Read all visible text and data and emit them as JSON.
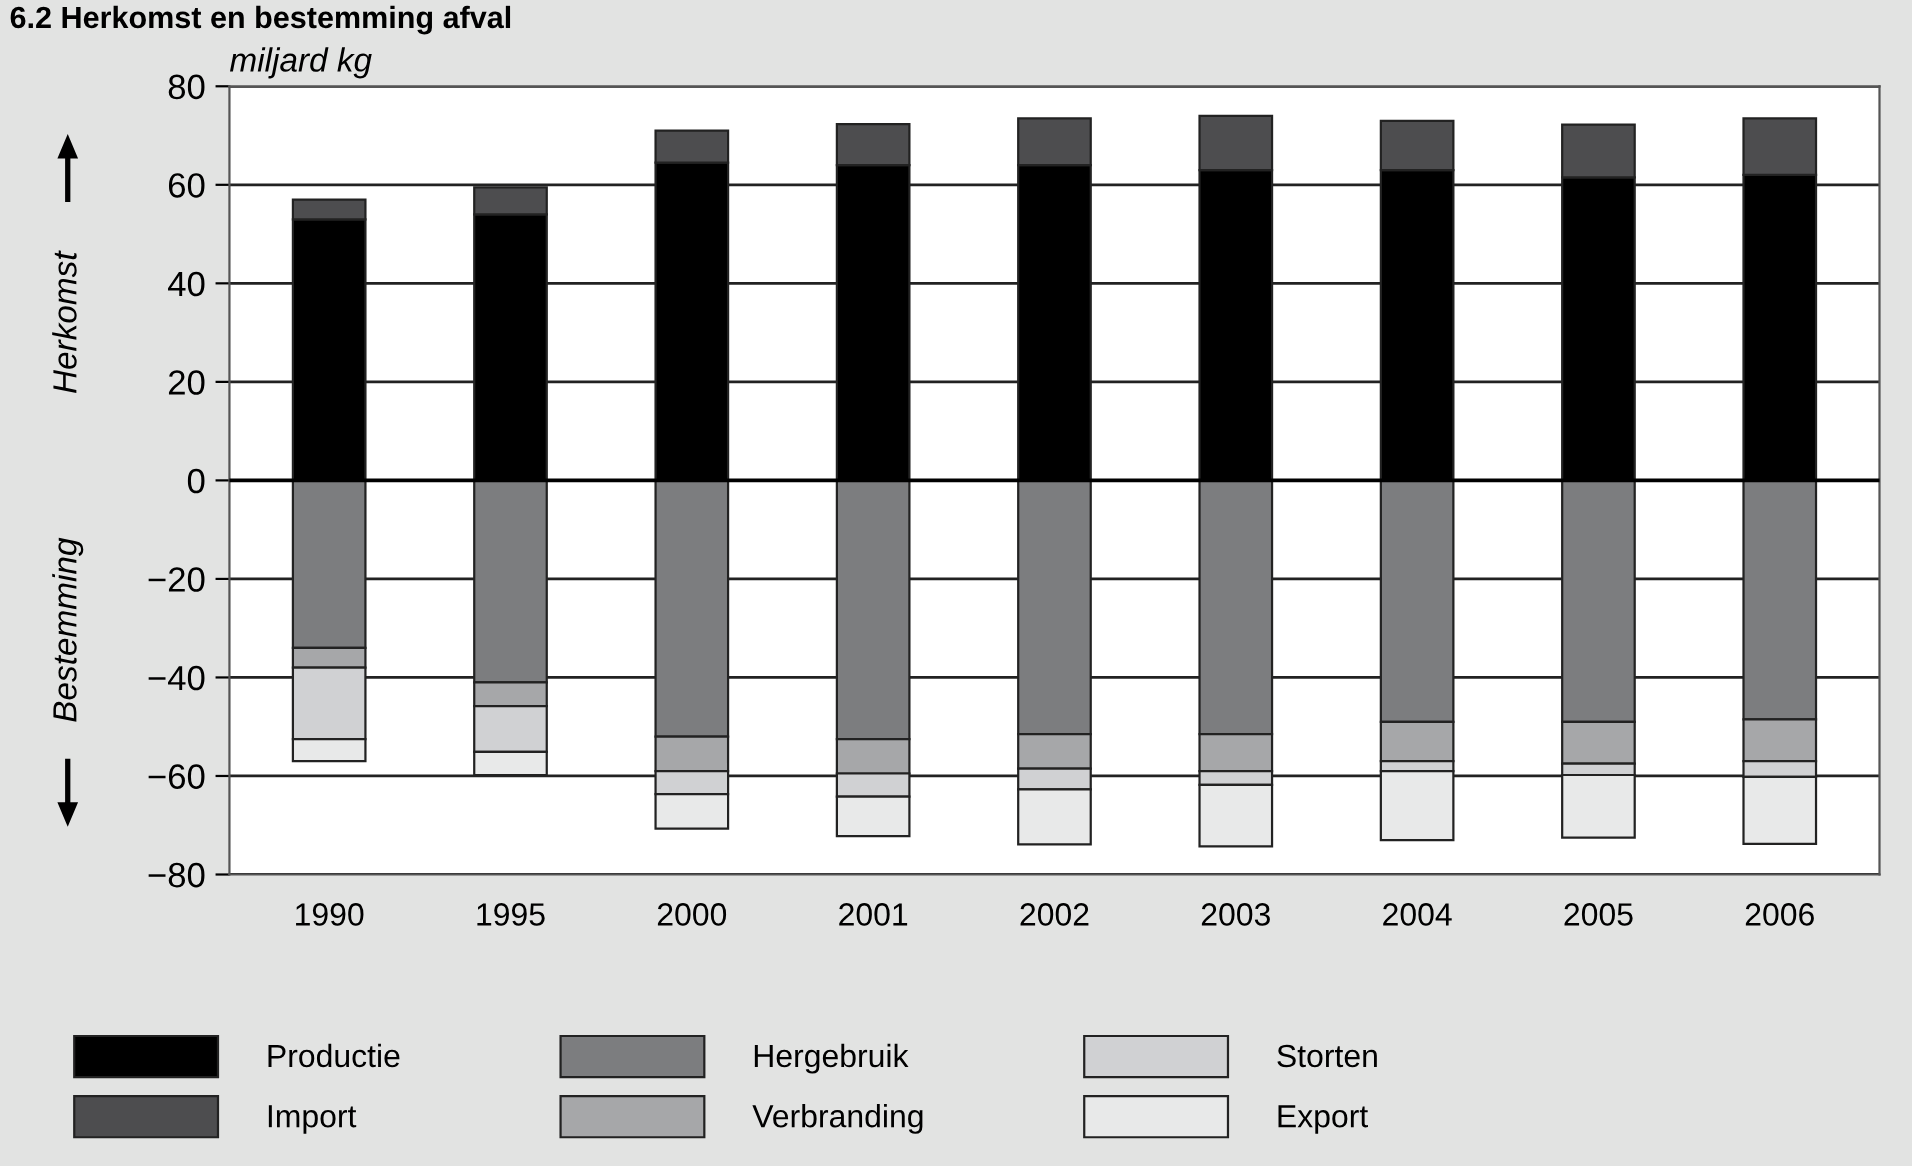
{
  "chart_data": {
    "type": "bar",
    "stacked": true,
    "title": "6.2 Herkomst en bestemming afval",
    "ylabel": "miljard kg",
    "annotations": [
      "Herkomst",
      "Bestemming"
    ],
    "categories": [
      "1990",
      "1995",
      "2000",
      "2001",
      "2002",
      "2003",
      "2004",
      "2005",
      "2006"
    ],
    "series": [
      {
        "name": "Productie",
        "color": "#000000",
        "values": [
          53,
          54,
          64.5,
          64,
          64,
          63,
          63,
          61.5,
          62
        ]
      },
      {
        "name": "Import",
        "color": "#4d4d4f",
        "values": [
          4,
          5.5,
          6.5,
          8.3,
          9.5,
          11,
          10,
          10.7,
          11.5
        ]
      },
      {
        "name": "Hergebruik",
        "color": "#7c7d7f",
        "values": [
          -34,
          -41,
          -52,
          -52.5,
          -51.5,
          -51.5,
          -49,
          -49,
          -48.5
        ]
      },
      {
        "name": "Verbranding",
        "color": "#a6a7a9",
        "values": [
          -4,
          -4.8,
          -7,
          -7,
          -7,
          -7.5,
          -8,
          -8.5,
          -8.5
        ]
      },
      {
        "name": "Storten",
        "color": "#d0d1d3",
        "values": [
          -14.5,
          -9.3,
          -4.7,
          -4.7,
          -4.2,
          -2.8,
          -2,
          -2.3,
          -3.2
        ]
      },
      {
        "name": "Export",
        "color": "#e8e9e9",
        "values": [
          -4.5,
          -4.7,
          -7,
          -8,
          -11.2,
          -12.5,
          -14,
          -12.7,
          -13.6
        ]
      }
    ],
    "ylim": [
      -80,
      80
    ],
    "yticks": [
      {
        "value": -80,
        "label": "−80"
      },
      {
        "value": -60,
        "label": "−60"
      },
      {
        "value": -40,
        "label": "−40"
      },
      {
        "value": -20,
        "label": "−20"
      },
      0,
      20,
      40,
      60,
      80
    ],
    "grid": "y",
    "legend": "bottom"
  }
}
